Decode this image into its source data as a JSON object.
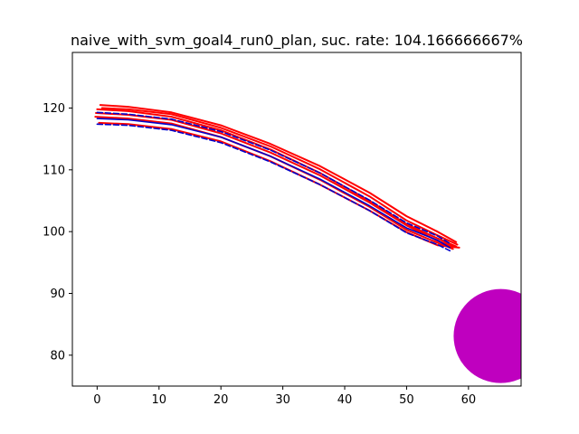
{
  "chart_data": {
    "type": "line",
    "title": "naive_with_svm_goal4_run0_plan, suc. rate: 104.166666667%",
    "xlabel": "",
    "ylabel": "",
    "xlim": [
      -4,
      68.5
    ],
    "ylim": [
      75,
      129
    ],
    "x_ticks": [
      0,
      10,
      20,
      30,
      40,
      50,
      60
    ],
    "y_ticks": [
      80,
      90,
      100,
      110,
      120
    ],
    "grid": false,
    "legend": "none",
    "colors": {
      "executed": "#ff0000",
      "planned": "#0000cc",
      "goal": "#bf00bf"
    },
    "series": [
      {
        "role": "executed",
        "style": "solid",
        "x": [
          0,
          5,
          12,
          20,
          28,
          36,
          44,
          50,
          55,
          58
        ],
        "y": [
          119.8,
          119.5,
          118.6,
          116.4,
          113.3,
          109.5,
          105.0,
          101.2,
          98.9,
          97.6
        ]
      },
      {
        "role": "executed",
        "style": "solid",
        "x": [
          0.5,
          5,
          12,
          20,
          28,
          36,
          44,
          50,
          55,
          58
        ],
        "y": [
          120.5,
          120.2,
          119.3,
          117.2,
          114.2,
          110.6,
          106.3,
          102.5,
          100.0,
          98.3
        ]
      },
      {
        "role": "executed",
        "style": "solid",
        "x": [
          -0.3,
          5,
          12,
          20,
          28,
          36,
          44,
          50,
          55,
          57.5
        ],
        "y": [
          118.6,
          118.3,
          117.5,
          115.3,
          112.2,
          108.4,
          104.0,
          100.3,
          98.2,
          97.2
        ]
      },
      {
        "role": "executed",
        "style": "solid",
        "x": [
          0.3,
          5,
          12,
          20,
          28,
          36,
          44,
          50,
          55,
          58.5
        ],
        "y": [
          117.6,
          117.4,
          116.6,
          114.6,
          111.4,
          107.6,
          103.4,
          99.9,
          97.8,
          97.4
        ]
      },
      {
        "role": "executed",
        "style": "solid",
        "x": [
          -0.2,
          5,
          12,
          20,
          28,
          36,
          44,
          50,
          55,
          57.8
        ],
        "y": [
          119.2,
          118.9,
          118.1,
          115.9,
          112.8,
          109.1,
          104.7,
          101.0,
          98.5,
          97.5
        ]
      },
      {
        "role": "executed",
        "style": "solid",
        "x": [
          0.8,
          5,
          12,
          20,
          28,
          36,
          44,
          50,
          55,
          58.2
        ],
        "y": [
          120.0,
          119.8,
          119.0,
          116.8,
          113.8,
          110.1,
          105.7,
          101.8,
          99.4,
          97.9
        ]
      },
      {
        "role": "planned",
        "style": "solid",
        "x": [
          0,
          5,
          12,
          20,
          28,
          36,
          44,
          50,
          55,
          57
        ],
        "y": [
          118.3,
          118.1,
          117.3,
          115.3,
          112.2,
          108.5,
          104.2,
          100.6,
          98.6,
          97.4
        ]
      },
      {
        "role": "planned",
        "style": "dashed",
        "x": [
          0,
          5,
          12,
          20,
          28,
          36,
          44,
          50,
          55,
          57
        ],
        "y": [
          119.3,
          119.0,
          118.2,
          116.2,
          113.2,
          109.5,
          105.1,
          101.4,
          99.3,
          98.1
        ]
      },
      {
        "role": "planned",
        "style": "dashed",
        "x": [
          0,
          5,
          12,
          20,
          28,
          36,
          44,
          50,
          55,
          57
        ],
        "y": [
          117.4,
          117.2,
          116.4,
          114.4,
          111.3,
          107.6,
          103.4,
          99.8,
          97.9,
          96.9
        ]
      }
    ],
    "goal_region": {
      "shape": "circle",
      "center": [
        65.2,
        83.1
      ],
      "radius_x_units": 7.6
    }
  }
}
